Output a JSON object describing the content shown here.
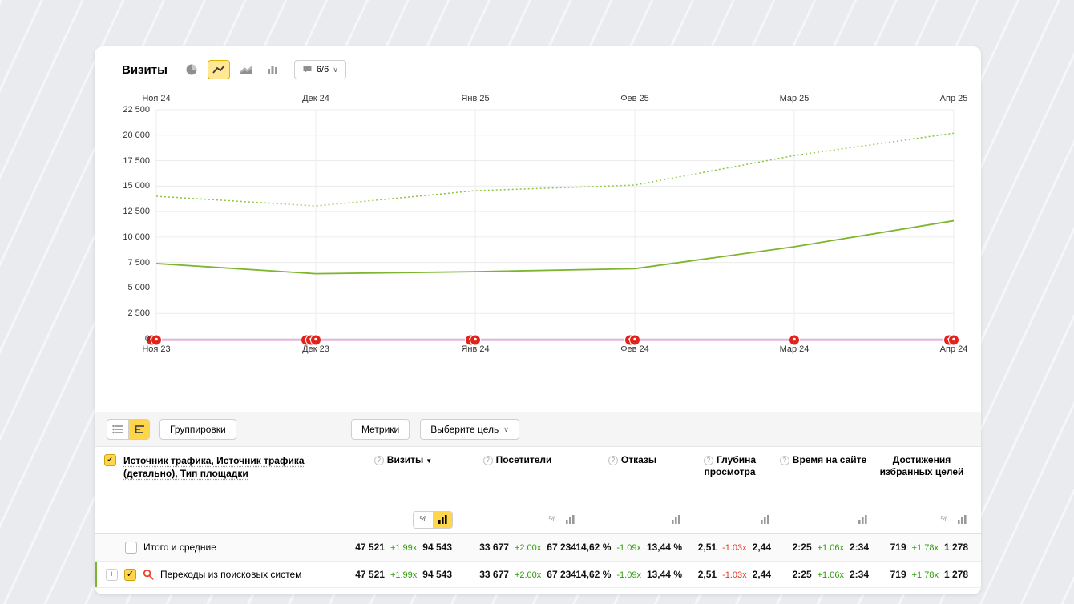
{
  "colors": {
    "accent_yellow": "#ffd64a",
    "line_green": "#7db52e",
    "line_green_dotted": "#8cc63f",
    "baseline_magenta": "#c519c5",
    "marker_red": "#e3221a",
    "positive_green": "#2d9e07",
    "negative_red": "#e8351f"
  },
  "chart_header": {
    "title": "Визиты",
    "comment_badge": "6/6"
  },
  "chart_data": {
    "type": "line",
    "title": "Визиты",
    "x_labels_top": [
      "Ноя 24",
      "Дек 24",
      "Янв 25",
      "Фев 25",
      "Мар 25",
      "Апр 25"
    ],
    "x_labels_bottom": [
      "Ноя 23",
      "Дек 23",
      "Янв 24",
      "Фев 24",
      "Мар 24",
      "Апр 24"
    ],
    "y_ticks": [
      0,
      2500,
      5000,
      7500,
      10000,
      12500,
      15000,
      17500,
      20000,
      22500
    ],
    "y_tick_labels": [
      "0",
      "2 500",
      "5 000",
      "7 500",
      "10 000",
      "12 500",
      "15 000",
      "17 500",
      "20 000",
      "22 500"
    ],
    "ylim": [
      0,
      22500
    ],
    "grid": true,
    "legend": "none",
    "series": [
      {
        "name": "visits-period-b-dotted",
        "style": "dotted",
        "color": "#8cc63f",
        "width": 1.5,
        "values": [
          14000,
          13050,
          14550,
          15100,
          18000,
          20200
        ]
      },
      {
        "name": "visits-period-a-solid",
        "style": "solid",
        "color": "#7db52e",
        "width": 1.8,
        "values": [
          7400,
          6400,
          6600,
          6900,
          9050,
          11600
        ]
      },
      {
        "name": "baseline-flat",
        "style": "solid",
        "color": "#c519c5",
        "width": 1.5,
        "offset_y": 1.5,
        "values": [
          0,
          0,
          0,
          0,
          0,
          0
        ]
      }
    ],
    "marker_color": "#e3221a",
    "marker_clusters": [
      2,
      3,
      2,
      2,
      1,
      2
    ]
  },
  "table": {
    "toolbar": {
      "groupings_label": "Группировки",
      "metrics_label": "Метрики",
      "goal_select_label": "Выберите цель"
    },
    "dimension_header": "Источник трафика, Источник трафика (детально), Тип площадки",
    "columns": [
      {
        "key": "visits",
        "label": "Визиты",
        "sorted": "desc"
      },
      {
        "key": "visitors",
        "label": "Посетители"
      },
      {
        "key": "bounce",
        "label": "Отказы"
      },
      {
        "key": "depth",
        "label": "Глубина просмотра"
      },
      {
        "key": "time",
        "label": "Время на сайте"
      },
      {
        "key": "goals",
        "label": "Достижения избранных целей"
      }
    ],
    "rows": [
      {
        "label": "Итого и средние",
        "checked": false,
        "metrics": [
          {
            "a": "47 521",
            "change": "+1.99x",
            "tone": "pos",
            "b": "94 543"
          },
          {
            "a": "33 677",
            "change": "+2.00x",
            "tone": "pos",
            "b": "67 234"
          },
          {
            "a": "14,62 %",
            "change": "-1.09x",
            "tone": "pos",
            "b": "13,44 %"
          },
          {
            "a": "2,51",
            "change": "-1.03x",
            "tone": "neg",
            "b": "2,44"
          },
          {
            "a": "2:25",
            "change": "+1.06x",
            "tone": "pos",
            "b": "2:34"
          },
          {
            "a": "719",
            "change": "+1.78x",
            "tone": "pos",
            "b": "1 278"
          }
        ]
      },
      {
        "label": "Переходы из поисковых систем",
        "checked": true,
        "expandable": true,
        "metrics": [
          {
            "a": "47 521",
            "change": "+1.99x",
            "tone": "pos",
            "b": "94 543"
          },
          {
            "a": "33 677",
            "change": "+2.00x",
            "tone": "pos",
            "b": "67 234"
          },
          {
            "a": "14,62 %",
            "change": "-1.09x",
            "tone": "pos",
            "b": "13,44 %"
          },
          {
            "a": "2,51",
            "change": "-1.03x",
            "tone": "neg",
            "b": "2,44"
          },
          {
            "a": "2:25",
            "change": "+1.06x",
            "tone": "pos",
            "b": "2:34"
          },
          {
            "a": "719",
            "change": "+1.78x",
            "tone": "pos",
            "b": "1 278"
          }
        ]
      }
    ]
  }
}
